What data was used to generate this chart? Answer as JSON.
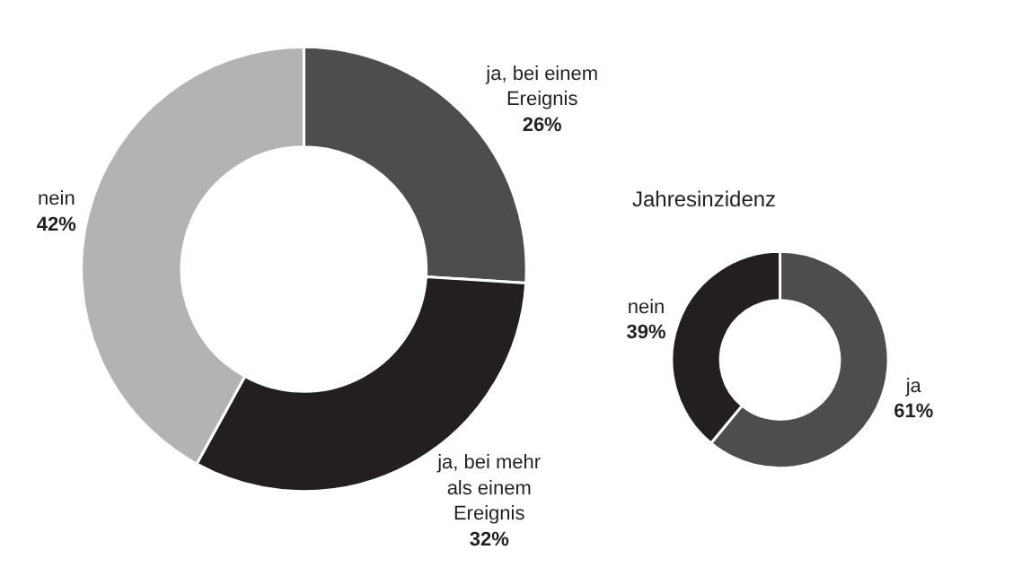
{
  "chart_data": [
    {
      "type": "donut",
      "categories": [
        "ja, bei einem Ereignis",
        "ja, bei mehr als einem Ereignis",
        "nein"
      ],
      "values": [
        26,
        32,
        42
      ],
      "colors": [
        "#4d4d4d",
        "#231f20",
        "#b3b3b3"
      ],
      "value_labels": [
        "26%",
        "32%",
        "42%"
      ]
    },
    {
      "type": "donut",
      "title": "Jahresinzidenz",
      "categories": [
        "ja",
        "nein"
      ],
      "values": [
        61,
        39
      ],
      "colors": [
        "#4d4d4d",
        "#231f20"
      ],
      "value_labels": [
        "61%",
        "39%"
      ]
    }
  ]
}
